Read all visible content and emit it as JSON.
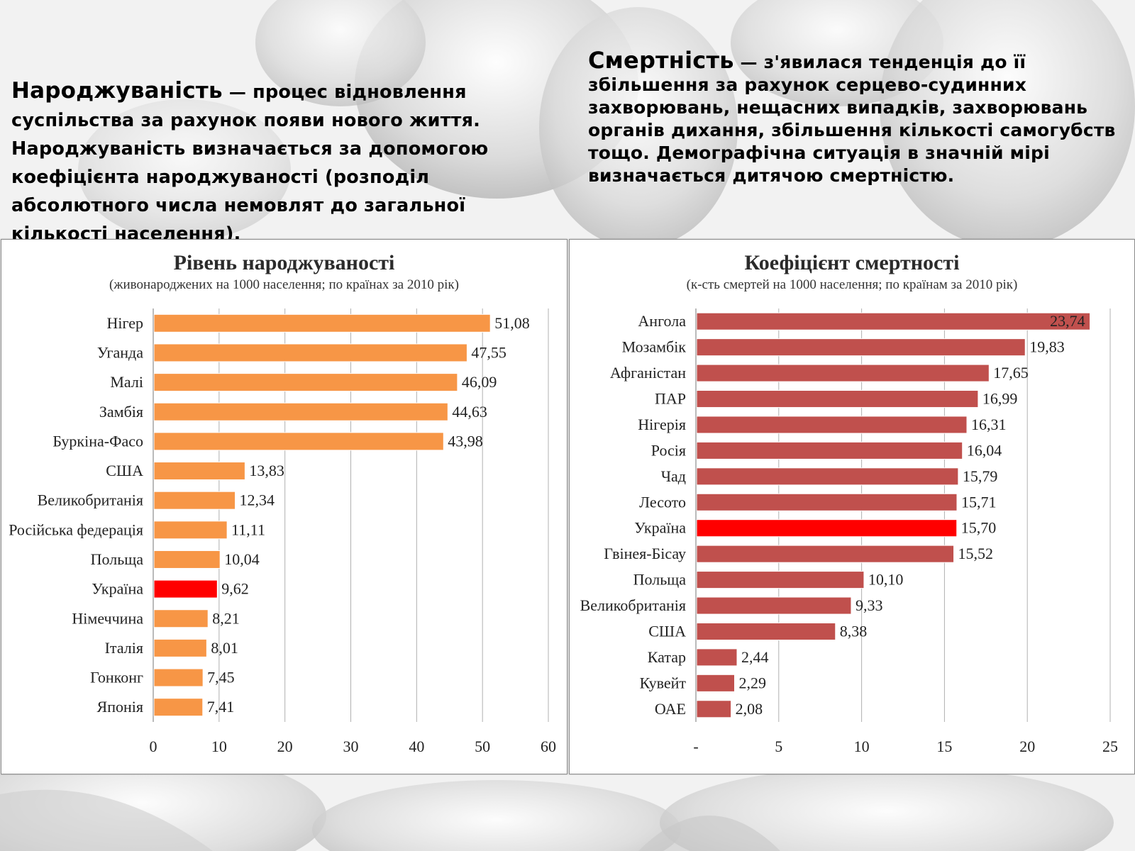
{
  "left_text": {
    "term": "Народжуваність",
    "dash": "—",
    "body": "процес відновлення суспільства за рахунок появи нового життя. Народжуваність визначається за допомогою коефіцієнта народжуваності (розподіл абсолютного числа немовлят до загальної кількості населення)."
  },
  "right_text": {
    "term": "Смертність",
    "dash": "—",
    "body": "з'явилася тенденція до її збільшення за рахунок серцево-судинних захворювань, нещасних випадків, захворювань органів дихання, збільшення кількості самогубств тощо. Демографічна ситуація в значній мірі визначається дитячою смертністю."
  },
  "colors": {
    "birth_bar": "#f79646",
    "death_bar": "#c0504d",
    "highlight_bar": "#ff0000",
    "highlight_label": "#c0272d",
    "grid": "#b0b0b0"
  },
  "chart_data": [
    {
      "type": "bar",
      "orientation": "horizontal",
      "title": "Рівень народжуваності",
      "subtitle": "(живонароджених на 1000 населення; по країнах за 2010 рік)",
      "categories": [
        "Нігер",
        "Уганда",
        "Малі",
        "Замбія",
        "Буркіна-Фасо",
        "США",
        "Великобританія",
        "Російська федерація",
        "Польща",
        "Україна",
        "Німеччина",
        "Італія",
        "Гонконг",
        "Японія"
      ],
      "values": [
        51.08,
        47.55,
        46.09,
        44.63,
        43.98,
        13.83,
        12.34,
        11.11,
        10.04,
        9.62,
        8.21,
        8.01,
        7.45,
        7.41
      ],
      "value_labels": [
        "51,08",
        "47,55",
        "46,09",
        "44,63",
        "43,98",
        "13,83",
        "12,34",
        "11,11",
        "10,04",
        "9,62",
        "8,21",
        "8,01",
        "7,45",
        "7,41"
      ],
      "highlight_index": 9,
      "xlim": [
        0,
        60
      ],
      "ticks": [
        0,
        10,
        20,
        30,
        40,
        50,
        60
      ],
      "tick_labels": [
        "0",
        "10",
        "20",
        "30",
        "40",
        "50",
        "60"
      ],
      "grid": true
    },
    {
      "type": "bar",
      "orientation": "horizontal",
      "title": "Коефіцієнт смертності",
      "subtitle": "(к-сть смертей на 1000 населення; по країнам за 2010 рік)",
      "categories": [
        "Ангола",
        "Мозамбік",
        "Афганістан",
        "ПАР",
        "Нігерія",
        "Росія",
        "Чад",
        "Лесото",
        "Україна",
        "Гвінея-Бісау",
        "Польща",
        "Великобританія",
        "США",
        "Катар",
        "Кувейт",
        "ОАЕ"
      ],
      "values": [
        23.74,
        19.83,
        17.65,
        16.99,
        16.31,
        16.04,
        15.79,
        15.71,
        15.7,
        15.52,
        10.1,
        9.33,
        8.38,
        2.44,
        2.29,
        2.08
      ],
      "value_labels": [
        "23,74",
        "19,83",
        "17,65",
        "16,99",
        "16,31",
        "16,04",
        "15,79",
        "15,71",
        "15,70",
        "15,52",
        "10,10",
        "9,33",
        "8,38",
        "2,44",
        "2,29",
        "2,08"
      ],
      "highlight_index": 8,
      "inside_label_index": 0,
      "xlim": [
        0,
        25
      ],
      "ticks": [
        0,
        5,
        10,
        15,
        20,
        25
      ],
      "tick_labels": [
        "-",
        "5",
        "10",
        "15",
        "20",
        "25"
      ],
      "grid": true
    }
  ]
}
